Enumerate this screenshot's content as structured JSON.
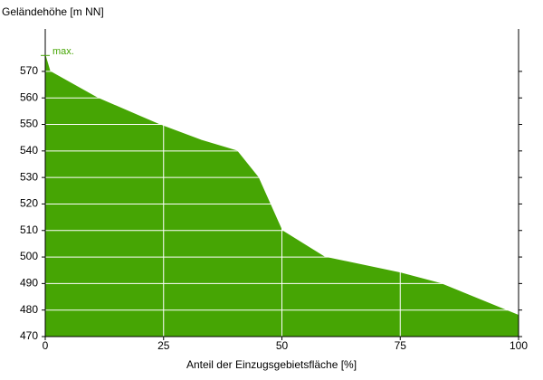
{
  "chart_data": {
    "type": "area",
    "y_label": "Geländehöhe [m NN]",
    "x_label": "Anteil der Einzugsgebietsfläche [%]",
    "annotation": "max.",
    "max_value": 576,
    "color": "#46a504",
    "x": [
      0,
      1,
      11,
      24,
      33,
      40.5,
      45,
      50,
      59,
      75,
      83.5,
      100
    ],
    "series": [
      {
        "values": [
          576,
          570,
          560,
          550,
          544,
          540,
          530,
          510,
          500,
          494,
          490,
          478
        ]
      }
    ],
    "xlim": [
      0,
      100
    ],
    "xticks": [
      0,
      25,
      50,
      75,
      100
    ],
    "ylim": [
      470,
      586
    ],
    "yticks": [
      470,
      480,
      490,
      500,
      510,
      520,
      530,
      540,
      550,
      560,
      570
    ],
    "grid": true
  }
}
